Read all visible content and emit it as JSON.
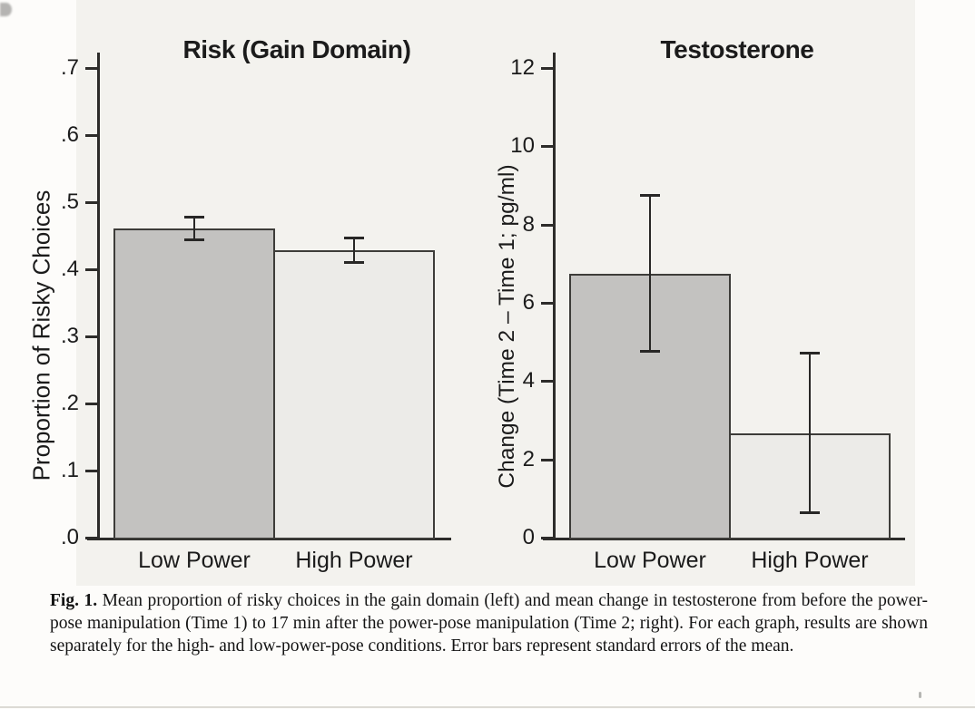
{
  "figure": {
    "caption_label": "Fig. 1.",
    "caption_text": "Mean proportion of risky choices in the gain domain (left) and mean change in testosterone from before the power-pose manipulation (Time 1) to 17 min after the power-pose manipulation (Time 2; right). For each graph, results are shown separately for the high- and low-power-pose conditions. Error bars represent standard errors of the mean."
  },
  "chart_data": [
    {
      "type": "bar",
      "title": "Risk (Gain Domain)",
      "xlabel": "",
      "ylabel": "Proportion of Risky Choices",
      "categories": [
        "Low Power",
        "High Power"
      ],
      "values": [
        0.461,
        0.428
      ],
      "errors": [
        0.018,
        0.019
      ],
      "ylim": [
        0,
        0.72
      ],
      "ytick_labels": [
        ".0",
        ".1",
        ".2",
        ".3",
        ".4",
        ".5",
        ".6",
        ".7"
      ],
      "ytick_values": [
        0,
        0.1,
        0.2,
        0.3,
        0.4,
        0.5,
        0.6,
        0.7
      ],
      "bar_colors": [
        "#c3c2c0",
        "#ecebe8"
      ],
      "grid": false,
      "legend": false,
      "error_bars": "standard error of the mean"
    },
    {
      "type": "bar",
      "title": "Testosterone",
      "xlabel": "",
      "ylabel": "Change (Time 2 – Time 1; pg/ml)",
      "categories": [
        "Low Power",
        "High Power"
      ],
      "values": [
        6.75,
        2.67
      ],
      "errors": [
        2.0,
        2.05
      ],
      "ylim": [
        0,
        12.4
      ],
      "ytick_labels": [
        "0",
        "2",
        "4",
        "6",
        "8",
        "10",
        "12"
      ],
      "ytick_values": [
        0,
        2,
        4,
        6,
        8,
        10,
        12
      ],
      "bar_colors": [
        "#c3c2c0",
        "#ecebe8"
      ],
      "grid": false,
      "legend": false,
      "error_bars": "standard error of the mean"
    }
  ]
}
